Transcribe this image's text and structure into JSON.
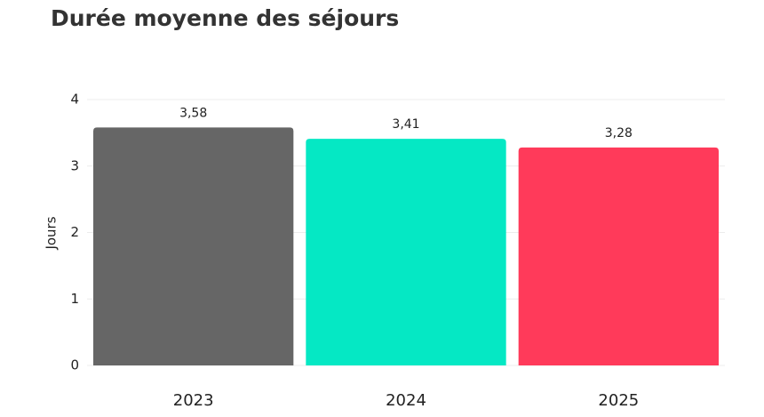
{
  "chart_data": {
    "type": "bar",
    "title": "Durée moyenne des séjours",
    "y_label": "Jours",
    "categories": [
      "2023",
      "2024",
      "2025"
    ],
    "values": [
      3.58,
      3.41,
      3.28
    ],
    "value_labels": [
      "3,58",
      "3,41",
      "3,28"
    ],
    "colors": [
      "#666666",
      "#05e8c4",
      "#ff3a5a"
    ],
    "ylim": [
      0,
      4
    ],
    "yticks": [
      0,
      1,
      2,
      3,
      4
    ],
    "grid": true
  }
}
